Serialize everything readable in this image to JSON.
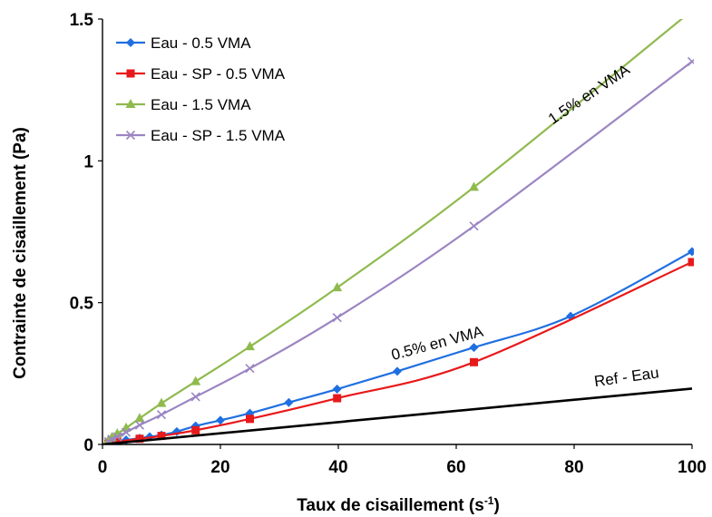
{
  "chart_data": {
    "type": "line",
    "title": "",
    "xlabel": "Taux de cisaillement (s",
    "xlabel_sup": "-1",
    "xlabel_end": ")",
    "ylabel": "Contrainte de cisaillement (Pa)",
    "xlim": [
      0,
      100
    ],
    "ylim": [
      0,
      1.5
    ],
    "x_ticks": [
      0,
      20,
      40,
      60,
      80,
      100
    ],
    "x_tick_labels": [
      "0",
      "20",
      "40",
      "60",
      "80",
      "100"
    ],
    "y_ticks": [
      0,
      0.5,
      1,
      1.5
    ],
    "y_tick_labels": [
      "0",
      "0.5",
      "1",
      "1.5"
    ],
    "grid": false,
    "legend_position": "top-left",
    "series": [
      {
        "name": "Eau - 0.5 VMA",
        "color": "#1f6fe0",
        "marker": "diamond",
        "points": [
          [
            1,
            0.005
          ],
          [
            1.6,
            0.008
          ],
          [
            2.5,
            0.012
          ],
          [
            4,
            0.016
          ],
          [
            6.3,
            0.022
          ],
          [
            8,
            0.027
          ],
          [
            10,
            0.033
          ],
          [
            12.6,
            0.045
          ],
          [
            15.8,
            0.065
          ],
          [
            20,
            0.085
          ],
          [
            25,
            0.11
          ],
          [
            31.6,
            0.148
          ],
          [
            39.8,
            0.195
          ],
          [
            50,
            0.258
          ],
          [
            63,
            0.342
          ],
          [
            79.4,
            0.452
          ],
          [
            100,
            0.68
          ]
        ]
      },
      {
        "name": "Eau - SP - 0.5 VMA",
        "color": "#e8191b",
        "marker": "square",
        "points": [
          [
            1,
            0.003
          ],
          [
            2.5,
            0.01
          ],
          [
            6.3,
            0.02
          ],
          [
            10,
            0.03
          ],
          [
            15.8,
            0.05
          ],
          [
            25,
            0.09
          ],
          [
            39.8,
            0.163
          ],
          [
            63,
            0.29
          ],
          [
            100,
            0.643
          ]
        ]
      },
      {
        "name": "Eau - 1.5 VMA",
        "color": "#8fba4e",
        "marker": "triangle",
        "points": [
          [
            1,
            0.015
          ],
          [
            1.6,
            0.025
          ],
          [
            2.5,
            0.038
          ],
          [
            4,
            0.058
          ],
          [
            6.3,
            0.092
          ],
          [
            10,
            0.145
          ],
          [
            15.8,
            0.222
          ],
          [
            25,
            0.345
          ],
          [
            39.8,
            0.553
          ],
          [
            63,
            0.907
          ],
          [
            100,
            1.53
          ]
        ]
      },
      {
        "name": "Eau - SP - 1.5 VMA",
        "color": "#9b85c2",
        "marker": "x",
        "points": [
          [
            1,
            0.01
          ],
          [
            1.6,
            0.018
          ],
          [
            2.5,
            0.027
          ],
          [
            4,
            0.043
          ],
          [
            6.3,
            0.068
          ],
          [
            10,
            0.105
          ],
          [
            15.8,
            0.168
          ],
          [
            25,
            0.268
          ],
          [
            39.8,
            0.447
          ],
          [
            63,
            0.77
          ],
          [
            100,
            1.35
          ]
        ]
      },
      {
        "name": "",
        "color": "#000000",
        "marker": "none",
        "points": [
          [
            0,
            0
          ],
          [
            100,
            0.197
          ]
        ]
      }
    ],
    "annotations": [
      {
        "text": "1.5% en VMA",
        "x": 83,
        "y": 1.22,
        "rotate": -34
      },
      {
        "text": "0.5% en VMA",
        "x": 57,
        "y": 0.34,
        "rotate": -15
      },
      {
        "text": "Ref - Eau",
        "x": 89,
        "y": 0.22,
        "rotate": -8
      }
    ]
  }
}
